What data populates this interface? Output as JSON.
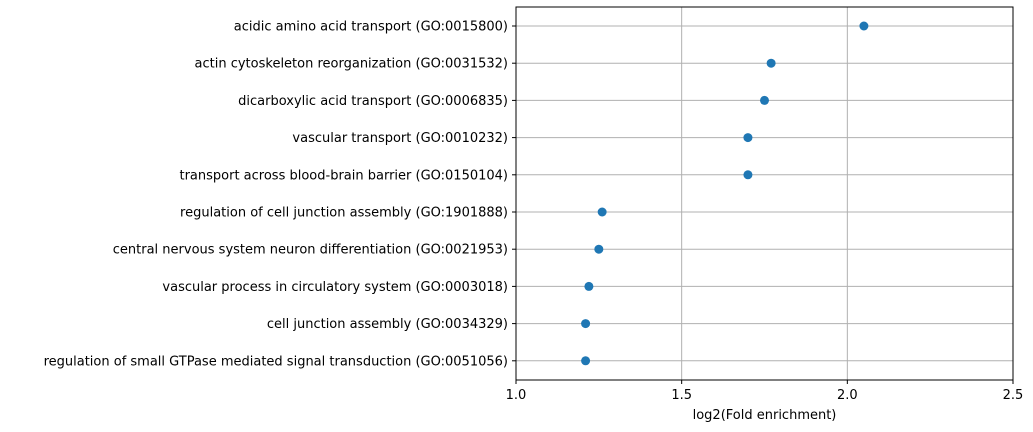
{
  "chart_data": {
    "type": "scatter",
    "xlabel": "log2(Fold enrichment)",
    "ylabel": "",
    "title": "",
    "xlim": [
      1.0,
      2.5
    ],
    "xticks": [
      "1.0",
      "1.5",
      "2.0",
      "2.5"
    ],
    "grid": true,
    "marker_color": "#1f77b4",
    "categories": [
      "acidic amino acid transport (GO:0015800)",
      "actin cytoskeleton reorganization (GO:0031532)",
      "dicarboxylic acid transport (GO:0006835)",
      "vascular transport (GO:0010232)",
      "transport across blood-brain barrier (GO:0150104)",
      "regulation of cell junction assembly (GO:1901888)",
      "central nervous system neuron differentiation (GO:0021953)",
      "vascular process in circulatory system (GO:0003018)",
      "cell junction assembly (GO:0034329)",
      "regulation of small GTPase mediated signal transduction (GO:0051056)"
    ],
    "values": [
      2.05,
      1.77,
      1.75,
      1.7,
      1.7,
      1.26,
      1.25,
      1.22,
      1.21,
      1.21
    ]
  }
}
